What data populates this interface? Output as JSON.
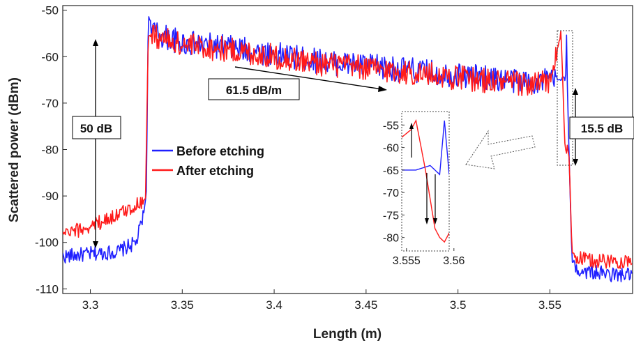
{
  "chart_data": {
    "type": "line",
    "xlabel": "Length (m)",
    "ylabel": "Scattered power (dBm)",
    "xlim": [
      3.285,
      3.595
    ],
    "ylim": [
      -111,
      -49
    ],
    "xticks": [
      "3.3",
      "3.35",
      "3.4",
      "3.45",
      "3.5",
      "3.55"
    ],
    "xtick_values": [
      3.3,
      3.35,
      3.4,
      3.45,
      3.5,
      3.55
    ],
    "yticks": [
      "-50",
      "-60",
      "-70",
      "-80",
      "-90",
      "-100",
      "-110"
    ],
    "ytick_values": [
      -50,
      -60,
      -70,
      -80,
      -90,
      -100,
      -110
    ],
    "legend_position": "center-left",
    "series": [
      {
        "name": "Before etching",
        "color": "#1f1fff",
        "x": [
          3.285,
          3.3,
          3.315,
          3.325,
          3.329,
          3.3305,
          3.3315,
          3.335,
          3.35,
          3.375,
          3.4,
          3.425,
          3.45,
          3.475,
          3.5,
          3.525,
          3.54,
          3.552,
          3.556,
          3.5575,
          3.5585,
          3.559,
          3.5595,
          3.5605,
          3.562,
          3.565,
          3.575,
          3.585,
          3.595
        ],
        "y": [
          -103,
          -102.5,
          -102,
          -100,
          -94,
          -89,
          -51,
          -55,
          -57,
          -58,
          -59.5,
          -61,
          -62,
          -63,
          -64,
          -65,
          -65.5,
          -65,
          -65,
          -64,
          -66,
          -54,
          -66,
          -82,
          -104,
          -106,
          -106.5,
          -107,
          -107
        ]
      },
      {
        "name": "After etching",
        "color": "#ff1a1a",
        "x": [
          3.285,
          3.3,
          3.315,
          3.325,
          3.33,
          3.3315,
          3.335,
          3.35,
          3.375,
          3.4,
          3.425,
          3.45,
          3.475,
          3.5,
          3.525,
          3.54,
          3.55,
          3.5555,
          3.556,
          3.557,
          3.558,
          3.5585,
          3.559,
          3.5595,
          3.5605,
          3.562,
          3.565,
          3.575,
          3.585,
          3.595
        ],
        "y": [
          -98.5,
          -96.5,
          -94,
          -92,
          -90.5,
          -55.5,
          -55.5,
          -57.5,
          -58.5,
          -60,
          -61.5,
          -62.5,
          -63.5,
          -64.5,
          -65.5,
          -66,
          -65.5,
          -56,
          -54,
          -65,
          -78,
          -80,
          -81,
          -79,
          -82,
          -102,
          -103.5,
          -104,
          -104,
          -104
        ]
      }
    ],
    "annotations": [
      "50 dB",
      "61.5 dB/m",
      "15.5 dB"
    ],
    "inset": {
      "xlim": [
        3.5545,
        3.5595
      ],
      "ylim": [
        -83,
        -52
      ],
      "xticks": [
        "3.555",
        "3.56"
      ],
      "xtick_values": [
        3.555,
        3.56
      ],
      "yticks": [
        "-55",
        "-60",
        "-65",
        "-70",
        "-75",
        "-80"
      ],
      "ytick_values": [
        -55,
        -60,
        -65,
        -70,
        -75,
        -80
      ]
    }
  }
}
